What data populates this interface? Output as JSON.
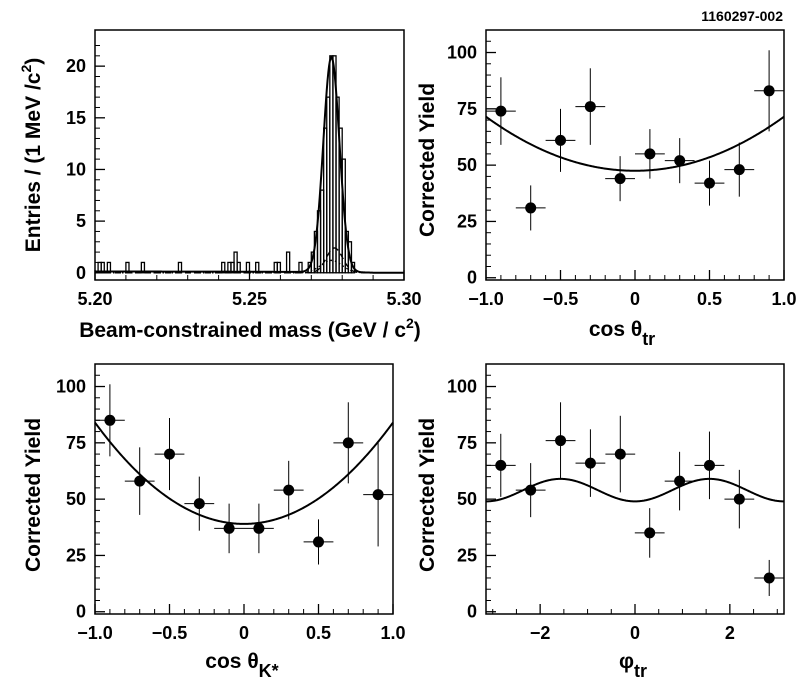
{
  "figure_id": "1160297-002",
  "chart_data": [
    {
      "id": "mass",
      "type": "histogram",
      "xlabel": "Beam-constrained  mass  (GeV / c",
      "xlabel_sup": "2",
      "xlabel_tail": ")",
      "ylabel": "Entries / (1 MeV /c",
      "ylabel_sup": "2",
      "ylabel_tail": ")",
      "xlim": [
        5.2,
        5.3
      ],
      "ylim": [
        -0.7,
        23.5
      ],
      "xticks": [
        5.2,
        5.25,
        5.3
      ],
      "xtick_labels": [
        "5.20",
        "5.25",
        "5.30"
      ],
      "yticks": [
        0,
        5,
        10,
        15,
        20
      ],
      "ytick_labels": [
        "0",
        "5",
        "10",
        "15",
        "20"
      ],
      "bin_width": 0.001,
      "bins": [
        {
          "x": 5.2015,
          "v": 1
        },
        {
          "x": 5.2025,
          "v": 1
        },
        {
          "x": 5.2045,
          "v": 1
        },
        {
          "x": 5.2105,
          "v": 1
        },
        {
          "x": 5.2155,
          "v": 1
        },
        {
          "x": 5.2275,
          "v": 1
        },
        {
          "x": 5.2415,
          "v": 1
        },
        {
          "x": 5.2435,
          "v": 1
        },
        {
          "x": 5.2445,
          "v": 1
        },
        {
          "x": 5.2455,
          "v": 2
        },
        {
          "x": 5.2465,
          "v": 1
        },
        {
          "x": 5.2495,
          "v": 1
        },
        {
          "x": 5.2525,
          "v": 1
        },
        {
          "x": 5.2585,
          "v": 1
        },
        {
          "x": 5.2595,
          "v": 1
        },
        {
          "x": 5.2625,
          "v": 2
        },
        {
          "x": 5.2665,
          "v": 1
        },
        {
          "x": 5.2695,
          "v": 1
        },
        {
          "x": 5.2705,
          "v": 2
        },
        {
          "x": 5.2715,
          "v": 4
        },
        {
          "x": 5.2725,
          "v": 6
        },
        {
          "x": 5.2735,
          "v": 8
        },
        {
          "x": 5.2745,
          "v": 14
        },
        {
          "x": 5.2755,
          "v": 17
        },
        {
          "x": 5.2765,
          "v": 21
        },
        {
          "x": 5.2775,
          "v": 21
        },
        {
          "x": 5.2785,
          "v": 17
        },
        {
          "x": 5.2795,
          "v": 14
        },
        {
          "x": 5.2805,
          "v": 11
        },
        {
          "x": 5.2815,
          "v": 4
        },
        {
          "x": 5.2825,
          "v": 3
        },
        {
          "x": 5.2835,
          "v": 1
        }
      ],
      "curves": [
        {
          "name": "total fit",
          "style": "solid",
          "mean": 5.2765,
          "sigma": 0.0026,
          "amp": 20.8,
          "bkg": 0.12,
          "bkg_endpoint": 5.29
        },
        {
          "name": "component 1",
          "style": "dashed",
          "mean": 5.2775,
          "sigma": 0.0026,
          "amp": 2.4,
          "bkg": 0,
          "bkg_endpoint": 5.29
        },
        {
          "name": "component 2",
          "style": "dotted",
          "mean": 5.2765,
          "sigma": 0.0034,
          "amp": 1.2,
          "bkg": 0,
          "bkg_endpoint": 5.29
        }
      ]
    },
    {
      "id": "costr",
      "type": "scatter",
      "xlabel": "cos θ",
      "xlabel_sub": "tr",
      "ylabel": "Corrected Yield",
      "xlim": [
        -1,
        1
      ],
      "ylim": [
        -1,
        110
      ],
      "xticks": [
        -1,
        -0.5,
        0,
        0.5,
        1
      ],
      "xtick_labels": [
        "−1.0",
        "−0.5",
        "0",
        "0.5",
        "1.0"
      ],
      "yticks": [
        0,
        25,
        50,
        75,
        100
      ],
      "ytick_labels": [
        "0",
        "25",
        "50",
        "75",
        "100"
      ],
      "points": [
        {
          "x": -0.9,
          "y": 74,
          "xerr": 0.1,
          "yerr": 15
        },
        {
          "x": -0.7,
          "y": 31,
          "xerr": 0.1,
          "yerr": 10
        },
        {
          "x": -0.5,
          "y": 61,
          "xerr": 0.1,
          "yerr": 14
        },
        {
          "x": -0.3,
          "y": 76,
          "xerr": 0.1,
          "yerr": 17
        },
        {
          "x": -0.1,
          "y": 44,
          "xerr": 0.1,
          "yerr": 10
        },
        {
          "x": 0.1,
          "y": 55,
          "xerr": 0.1,
          "yerr": 11
        },
        {
          "x": 0.3,
          "y": 52,
          "xerr": 0.1,
          "yerr": 10
        },
        {
          "x": 0.5,
          "y": 42,
          "xerr": 0.1,
          "yerr": 10
        },
        {
          "x": 0.7,
          "y": 48,
          "xerr": 0.1,
          "yerr": 12
        },
        {
          "x": 0.9,
          "y": 83,
          "xerr": 0.1,
          "yerr": 18
        }
      ],
      "fit": {
        "kind": "poly",
        "coeffs": [
          47.5,
          0,
          24
        ]
      }
    },
    {
      "id": "cosk",
      "type": "scatter",
      "xlabel": "cos θ",
      "xlabel_sub": "K*",
      "ylabel": "Corrected Yield",
      "xlim": [
        -1,
        1
      ],
      "ylim": [
        -1,
        110
      ],
      "xticks": [
        -1,
        -0.5,
        0,
        0.5,
        1
      ],
      "xtick_labels": [
        "−1.0",
        "−0.5",
        "0",
        "0.5",
        "1.0"
      ],
      "yticks": [
        0,
        25,
        50,
        75,
        100
      ],
      "ytick_labels": [
        "0",
        "25",
        "50",
        "75",
        "100"
      ],
      "points": [
        {
          "x": -0.9,
          "y": 85,
          "xerr": 0.1,
          "yerr": 16
        },
        {
          "x": -0.7,
          "y": 58,
          "xerr": 0.1,
          "yerr": 15
        },
        {
          "x": -0.5,
          "y": 70,
          "xerr": 0.1,
          "yerr": 16
        },
        {
          "x": -0.3,
          "y": 48,
          "xerr": 0.1,
          "yerr": 12
        },
        {
          "x": -0.1,
          "y": 37,
          "xerr": 0.1,
          "yerr": 11
        },
        {
          "x": 0.1,
          "y": 37,
          "xerr": 0.1,
          "yerr": 11
        },
        {
          "x": 0.3,
          "y": 54,
          "xerr": 0.1,
          "yerr": 13
        },
        {
          "x": 0.5,
          "y": 31,
          "xerr": 0.1,
          "yerr": 10
        },
        {
          "x": 0.7,
          "y": 75,
          "xerr": 0.1,
          "yerr": 18
        },
        {
          "x": 0.9,
          "y": 52,
          "xerr": 0.1,
          "yerr": 23
        }
      ],
      "fit": {
        "kind": "poly",
        "coeffs": [
          39,
          0,
          45
        ]
      }
    },
    {
      "id": "phitr",
      "type": "scatter",
      "xlabel": "φ",
      "xlabel_sub": "tr",
      "ylabel": "Corrected Yield",
      "xlim": [
        -3.1416,
        3.1416
      ],
      "ylim": [
        -1,
        110
      ],
      "xticks": [
        -2,
        0,
        2
      ],
      "xtick_labels": [
        "−2",
        "0",
        "2"
      ],
      "yticks": [
        0,
        25,
        50,
        75,
        100
      ],
      "ytick_labels": [
        "0",
        "25",
        "50",
        "75",
        "100"
      ],
      "points": [
        {
          "x": -2.83,
          "y": 65,
          "xerr": 0.314,
          "yerr": 14
        },
        {
          "x": -2.2,
          "y": 54,
          "xerr": 0.314,
          "yerr": 12
        },
        {
          "x": -1.57,
          "y": 76,
          "xerr": 0.314,
          "yerr": 17
        },
        {
          "x": -0.94,
          "y": 66,
          "xerr": 0.314,
          "yerr": 15
        },
        {
          "x": -0.31,
          "y": 70,
          "xerr": 0.314,
          "yerr": 17
        },
        {
          "x": 0.31,
          "y": 35,
          "xerr": 0.314,
          "yerr": 11
        },
        {
          "x": 0.94,
          "y": 58,
          "xerr": 0.314,
          "yerr": 13
        },
        {
          "x": 1.57,
          "y": 65,
          "xerr": 0.314,
          "yerr": 15
        },
        {
          "x": 2.2,
          "y": 50,
          "xerr": 0.314,
          "yerr": 13
        },
        {
          "x": 2.83,
          "y": 15,
          "xerr": 0.314,
          "yerr": 8
        }
      ],
      "fit": {
        "kind": "cos2",
        "base": 54,
        "amp": -5
      }
    }
  ]
}
